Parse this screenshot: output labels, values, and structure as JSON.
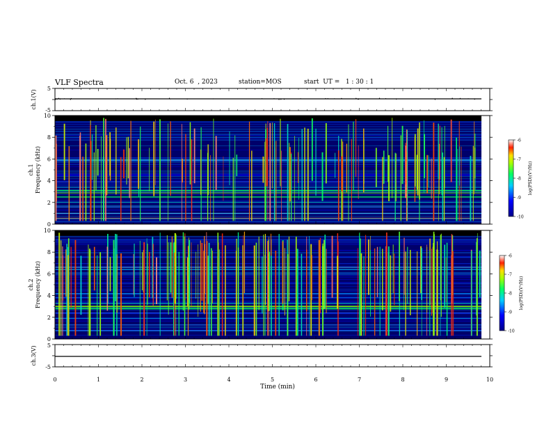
{
  "header": {
    "title": "VLF Spectra",
    "date": "Oct. 6  , 2023",
    "station": "station=MOS",
    "start": "start  UT =   1 : 30 : 1"
  },
  "chart_data": [
    {
      "type": "line",
      "panel": "ch1-voltage",
      "ylabel": "ch.1(V)",
      "ylim": [
        -5,
        5
      ],
      "yticks": [
        5,
        -5
      ],
      "xlim": [
        0,
        10
      ],
      "series": [
        {
          "x": [
            0,
            9.8
          ],
          "y": [
            0,
            0
          ]
        }
      ]
    },
    {
      "type": "heatmap",
      "panel": "ch1-spectrogram",
      "ylabel": "ch.1\nFrequency (kHz)",
      "ylim": [
        0,
        10
      ],
      "yticks": [
        0,
        2,
        4,
        6,
        8,
        10
      ],
      "xlim": [
        0,
        10
      ],
      "colorbar": {
        "label": "log(PSD)(V²/Hz)",
        "range": [
          -10,
          -6
        ],
        "ticks": [
          "-6",
          "-7",
          "-8",
          "-9",
          "-10"
        ]
      }
    },
    {
      "type": "heatmap",
      "panel": "ch2-spectrogram",
      "ylabel": "ch.2\nFrequency (kHz)",
      "ylim": [
        0,
        10
      ],
      "yticks": [
        0,
        2,
        4,
        6,
        8,
        10
      ],
      "xlim": [
        0,
        10
      ],
      "colorbar": {
        "label": "log(PSD)(V²/Hz)",
        "range": [
          -10,
          -6
        ],
        "ticks": [
          "-6",
          "-7",
          "-8",
          "-9",
          "-10"
        ]
      }
    },
    {
      "type": "line",
      "panel": "ch3-voltage",
      "ylabel": "ch.3(V)",
      "ylim": [
        -5,
        5
      ],
      "yticks": [
        5,
        -5
      ],
      "xlim": [
        0,
        10
      ],
      "xlabel": "Time  (min)",
      "xticks": [
        0,
        1,
        2,
        3,
        4,
        5,
        6,
        7,
        8,
        9,
        10
      ],
      "series": [
        {
          "x": [
            0,
            9.8
          ],
          "y": [
            0,
            0
          ]
        }
      ]
    }
  ]
}
